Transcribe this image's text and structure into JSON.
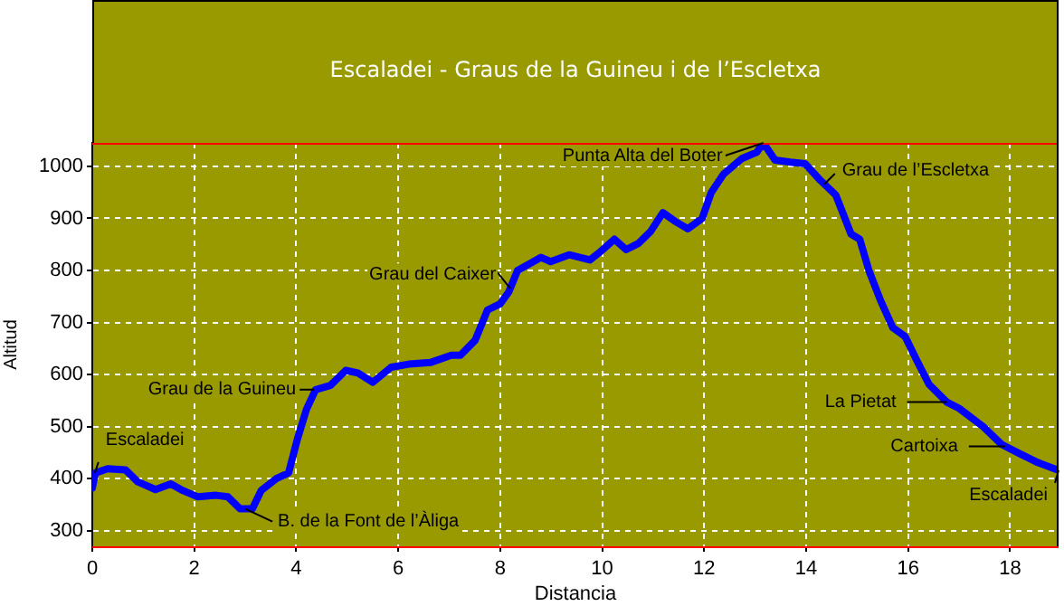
{
  "chart_data": {
    "type": "line",
    "title": "Escaladei - Graus de la Guineu i de l’Escletxa",
    "xlabel": "Distancia",
    "ylabel": "Altitud",
    "xlim": [
      0,
      18.95
    ],
    "ylim": [
      270,
      1045
    ],
    "xticks": [
      0,
      2,
      4,
      6,
      8,
      10,
      12,
      14,
      16,
      18
    ],
    "yticks": [
      300,
      400,
      500,
      600,
      700,
      800,
      900,
      1000
    ],
    "grid": true,
    "legend": false,
    "marker": "none",
    "line_style": "solid",
    "series": [
      {
        "color": "#0000ff",
        "x": [
          0,
          0.06,
          0.3,
          0.65,
          0.89,
          1.24,
          1.54,
          1.78,
          2.07,
          2.43,
          2.66,
          2.9,
          3.14,
          3.31,
          3.61,
          3.85,
          4.02,
          4.2,
          4.38,
          4.67,
          4.97,
          5.21,
          5.5,
          5.86,
          6.21,
          6.63,
          7.04,
          7.22,
          7.51,
          7.75,
          8.0,
          8.17,
          8.34,
          8.58,
          8.8,
          8.99,
          9.35,
          9.76,
          9.94,
          10.24,
          10.47,
          10.71,
          10.95,
          11.19,
          11.42,
          11.68,
          11.96,
          12.14,
          12.38,
          12.74,
          13.03,
          13.16,
          13.39,
          13.69,
          13.98,
          14.28,
          14.58,
          14.88,
          15.05,
          15.23,
          15.46,
          15.7,
          15.94,
          16.17,
          16.41,
          16.76,
          17.0,
          17.47,
          17.83,
          18.19,
          18.54,
          18.95
        ],
        "values": [
          382,
          411,
          419,
          417,
          394,
          379,
          390,
          377,
          365,
          368,
          365,
          342,
          342,
          377,
          400,
          411,
          475,
          533,
          571,
          579,
          608,
          603,
          585,
          614,
          620,
          623,
          637,
          637,
          666,
          724,
          736,
          759,
          800,
          813,
          825,
          817,
          830,
          820,
          834,
          860,
          840,
          852,
          875,
          911,
          895,
          880,
          900,
          950,
          985,
          1015,
          1027,
          1045,
          1012,
          1008,
          1005,
          973,
          945,
          870,
          860,
          800,
          742,
          690,
          673,
          627,
          581,
          547,
          535,
          500,
          466,
          448,
          431,
          416
        ]
      }
    ],
    "annotations": [
      {
        "text": "Escaladei",
        "x": 0.05,
        "y": 411
      },
      {
        "text": "B. de la Font de l’Àliga",
        "x": 3.0,
        "y": 342
      },
      {
        "text": "Grau de la Guineu",
        "x": 4.35,
        "y": 571
      },
      {
        "text": "Grau del Caixer",
        "x": 8.2,
        "y": 765
      },
      {
        "text": "Punta Alta del Boter",
        "x": 13.16,
        "y": 1045
      },
      {
        "text": "Grau de l’Escletxa",
        "x": 14.35,
        "y": 965
      },
      {
        "text": "La Pietat",
        "x": 16.76,
        "y": 547
      },
      {
        "text": "Cartoixa",
        "x": 17.9,
        "y": 462
      },
      {
        "text": "Escaladei",
        "x": 18.95,
        "y": 416
      }
    ]
  }
}
